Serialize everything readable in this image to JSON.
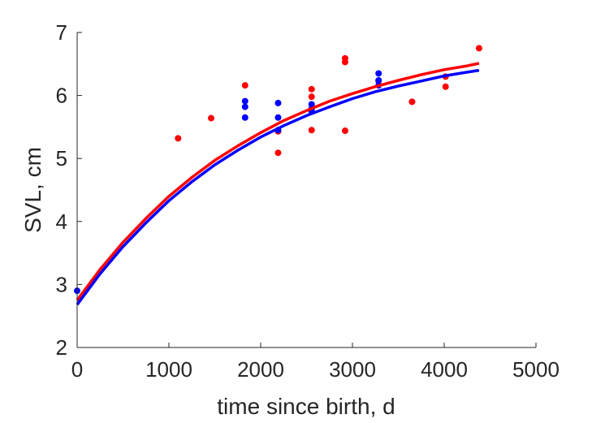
{
  "chart_data": {
    "type": "scatter",
    "xlabel": "time since birth, d",
    "ylabel": "SVL, cm",
    "xlim": [
      0,
      5000
    ],
    "ylim": [
      2,
      7
    ],
    "xticks": [
      0,
      1000,
      2000,
      3000,
      4000,
      5000
    ],
    "yticks": [
      2,
      3,
      4,
      5,
      6,
      7
    ],
    "grid": false,
    "legend": "none",
    "series": [
      {
        "kind": "points",
        "color": "#ff0000",
        "x": [
          1100,
          1460,
          1830,
          2190,
          2190,
          2555,
          2555,
          2555,
          2920,
          2920,
          2920,
          3285,
          3650,
          4015,
          4015,
          4380
        ],
        "y": [
          5.32,
          5.64,
          6.16,
          5.43,
          5.09,
          6.1,
          5.98,
          5.45,
          6.59,
          6.53,
          5.44,
          6.23,
          5.9,
          6.3,
          6.14,
          6.75
        ]
      },
      {
        "kind": "points",
        "color": "#0000ff",
        "x": [
          0,
          1830,
          1830,
          1830,
          2190,
          2190,
          2190,
          2555,
          2555,
          2555,
          3285,
          3285,
          3285
        ],
        "y": [
          2.9,
          5.91,
          5.82,
          5.65,
          5.88,
          5.65,
          5.45,
          5.86,
          5.79,
          5.75,
          6.35,
          6.24,
          6.16
        ]
      },
      {
        "kind": "line",
        "color": "#ff0000",
        "x": [
          0,
          250,
          500,
          750,
          1000,
          1250,
          1500,
          1750,
          2000,
          2250,
          2500,
          2750,
          3000,
          3250,
          3500,
          3750,
          4000,
          4250,
          4380
        ],
        "y": [
          2.75,
          3.24,
          3.67,
          4.05,
          4.4,
          4.7,
          4.97,
          5.2,
          5.41,
          5.6,
          5.76,
          5.91,
          6.03,
          6.14,
          6.24,
          6.33,
          6.41,
          6.47,
          6.51
        ]
      },
      {
        "kind": "line",
        "color": "#0000ff",
        "x": [
          0,
          250,
          500,
          750,
          1000,
          1250,
          1500,
          1750,
          2000,
          2250,
          2500,
          2750,
          3000,
          3250,
          3500,
          3750,
          4000,
          4250,
          4380
        ],
        "y": [
          2.68,
          3.17,
          3.6,
          3.98,
          4.33,
          4.63,
          4.9,
          5.13,
          5.34,
          5.52,
          5.68,
          5.82,
          5.95,
          6.06,
          6.15,
          6.23,
          6.31,
          6.37,
          6.4
        ]
      }
    ]
  }
}
